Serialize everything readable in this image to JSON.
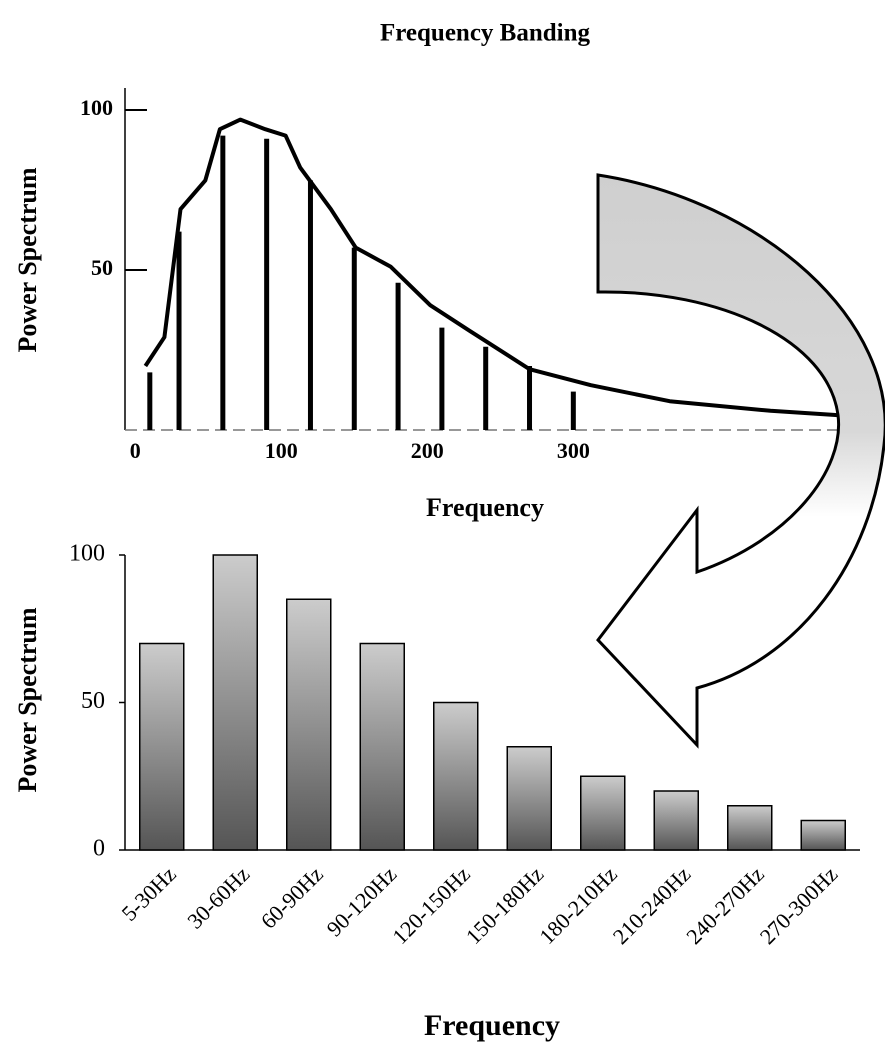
{
  "chart_data": [
    {
      "type": "line",
      "title": "Frequency Banding",
      "x_label": "Frequency",
      "y_label": "Power Spectrum",
      "xlim": [
        -7,
        510
      ],
      "ylim": [
        0,
        105
      ],
      "xticks": [
        0,
        100,
        200,
        300
      ],
      "yticks": [
        50,
        100
      ],
      "series": [
        {
          "color": "#000000",
          "x": [
            7,
            20,
            31,
            48,
            58,
            72,
            89,
            103,
            113,
            134,
            151,
            175,
            202,
            229,
            270,
            312,
            366,
            435,
            503
          ],
          "values": [
            20,
            29,
            69,
            78,
            94,
            97,
            94,
            92,
            82,
            69,
            57,
            51,
            39,
            31,
            19,
            14,
            9,
            6,
            4
          ]
        },
        {
          "color": "#000000",
          "style": "stem",
          "x": [
            10,
            30,
            60,
            90,
            120,
            150,
            180,
            210,
            240,
            270,
            300
          ],
          "values": [
            18,
            62,
            92,
            91,
            78,
            57,
            46,
            32,
            26,
            20,
            12
          ]
        }
      ]
    },
    {
      "type": "bar",
      "x_label": "Frequency",
      "y_label": "Power Spectrum",
      "categories": [
        "5-30Hz",
        "30-60Hz",
        "60-90Hz",
        "90-120Hz",
        "120-150Hz",
        "150-180Hz",
        "180-210Hz",
        "210-240Hz",
        "240-270Hz",
        "270-300Hz"
      ],
      "values": [
        70,
        100,
        85,
        70,
        50,
        35,
        25,
        20,
        15,
        10
      ],
      "ylim": [
        0,
        100
      ],
      "yticks": [
        0,
        50,
        100
      ]
    }
  ]
}
